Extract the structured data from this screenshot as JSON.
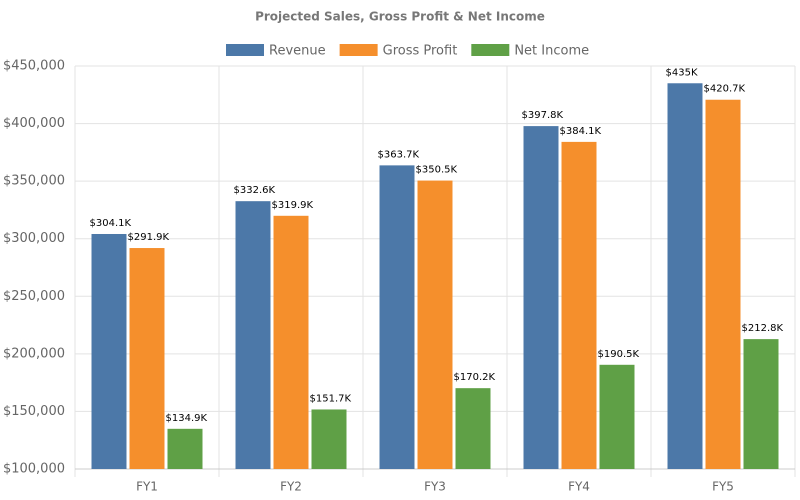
{
  "chart_data": {
    "type": "bar",
    "title": "Projected Sales, Gross Profit & Net Income",
    "categories": [
      "FY1",
      "FY2",
      "FY3",
      "FY4",
      "FY5"
    ],
    "series": [
      {
        "name": "Revenue",
        "color": "#4c78a8",
        "values": [
          304100,
          332600,
          363700,
          397800,
          435000
        ],
        "value_labels": [
          "$304.1K",
          "$332.6K",
          "$363.7K",
          "$397.8K",
          "$435K"
        ]
      },
      {
        "name": "Gross Profit",
        "color": "#f58f2c",
        "values": [
          291900,
          319900,
          350500,
          384100,
          420700
        ],
        "value_labels": [
          "$291.9K",
          "$319.9K",
          "$350.5K",
          "$384.1K",
          "$420.7K"
        ]
      },
      {
        "name": "Net Income",
        "color": "#5fa046",
        "values": [
          134900,
          151700,
          170200,
          190500,
          212800
        ],
        "value_labels": [
          "$134.9K",
          "$151.7K",
          "$170.2K",
          "$190.5K",
          "$212.8K"
        ]
      }
    ],
    "ylim": [
      100000,
      450000
    ],
    "yticks": [
      {
        "value": 100000,
        "label": "$100,000"
      },
      {
        "value": 150000,
        "label": "$150,000"
      },
      {
        "value": 200000,
        "label": "$200,000"
      },
      {
        "value": 250000,
        "label": "$250,000"
      },
      {
        "value": 300000,
        "label": "$300,000"
      },
      {
        "value": 350000,
        "label": "$350,000"
      },
      {
        "value": 400000,
        "label": "$400,000"
      },
      {
        "value": 450000,
        "label": "$450,000"
      }
    ],
    "grid": true,
    "legend": "top"
  }
}
